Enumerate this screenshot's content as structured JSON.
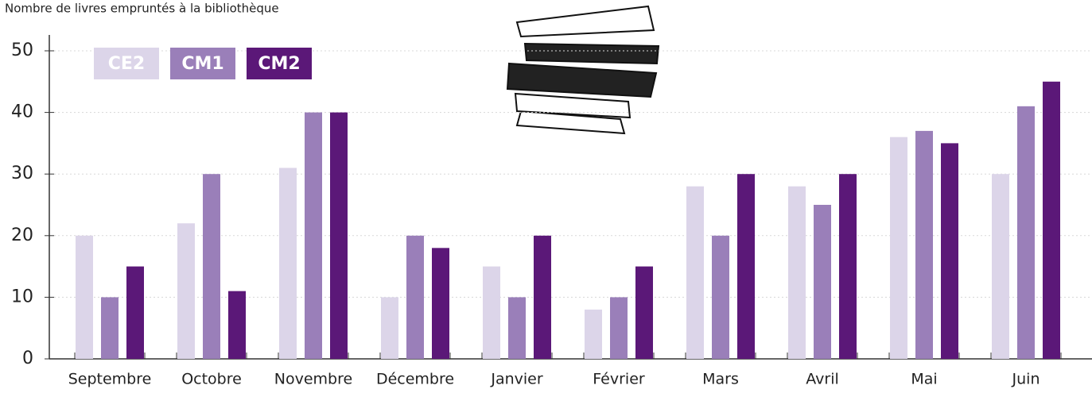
{
  "chart_data": {
    "type": "bar",
    "title": "Nombre de livres empruntés à la bibliothèque",
    "categories": [
      "Septembre",
      "Octobre",
      "Novembre",
      "Décembre",
      "Janvier",
      "Février",
      "Mars",
      "Avril",
      "Mai",
      "Juin"
    ],
    "series": [
      {
        "name": "CE2",
        "color": "#dcd5e9",
        "values": [
          20,
          22,
          31,
          10,
          15,
          8,
          28,
          28,
          36,
          30
        ]
      },
      {
        "name": "CM1",
        "color": "#9a7fb9",
        "values": [
          10,
          30,
          40,
          20,
          10,
          10,
          20,
          25,
          37,
          41
        ]
      },
      {
        "name": "CM2",
        "color": "#5b1878",
        "values": [
          15,
          11,
          40,
          18,
          20,
          15,
          30,
          30,
          35,
          45
        ]
      }
    ],
    "ylim": [
      0,
      50
    ],
    "yticks": [
      0,
      10,
      20,
      30,
      40,
      50
    ],
    "grid": true,
    "legend": "top-left"
  }
}
